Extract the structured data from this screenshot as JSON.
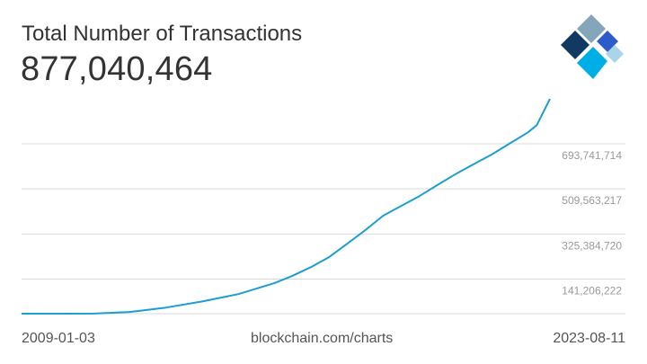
{
  "header": {
    "title": "Total Number of Transactions",
    "value": "877,040,464"
  },
  "footer": {
    "start_date": "2009-01-03",
    "source": "blockchain.com/charts",
    "end_date": "2023-08-11"
  },
  "logo": {
    "icon": "blockchain-logo-icon",
    "colors": [
      "#123962",
      "#85a6ba",
      "#2d5bc9",
      "#00aee6",
      "#a8d5ea"
    ]
  },
  "colors": {
    "line": "#1c9ed0",
    "grid": "#d9d9d9",
    "tick_text": "#999999"
  },
  "chart_data": {
    "type": "line",
    "title": "Total Number of Transactions",
    "xlabel": "",
    "ylabel": "",
    "x_range": [
      "2009-01-03",
      "2023-08-11"
    ],
    "ylim": [
      0,
      877040464
    ],
    "y_ticks": [
      141206222,
      325384720,
      509563217,
      693741714
    ],
    "y_tick_labels": [
      "141,206,222",
      "325,384,720",
      "509,563,217",
      "693,741,714"
    ],
    "grid": true,
    "series": [
      {
        "x": [
          "2009-01-03",
          "2010-01-01",
          "2011-01-01",
          "2012-01-01",
          "2013-01-01",
          "2014-01-01",
          "2015-01-01",
          "2016-01-01",
          "2016-07-01",
          "2017-01-01",
          "2017-07-01",
          "2018-01-01",
          "2018-07-01",
          "2019-01-01",
          "2019-07-01",
          "2020-01-01",
          "2020-07-01",
          "2021-01-01",
          "2021-07-01",
          "2022-01-01",
          "2022-07-01",
          "2023-01-01",
          "2023-04-01",
          "2023-08-11"
        ],
        "values": [
          0,
          30000,
          300000,
          7000000,
          25000000,
          50000000,
          80000000,
          125000000,
          155000000,
          190000000,
          230000000,
          285000000,
          340000000,
          400000000,
          440000000,
          480000000,
          525000000,
          570000000,
          610000000,
          650000000,
          695000000,
          740000000,
          770000000,
          877040464
        ]
      }
    ]
  }
}
